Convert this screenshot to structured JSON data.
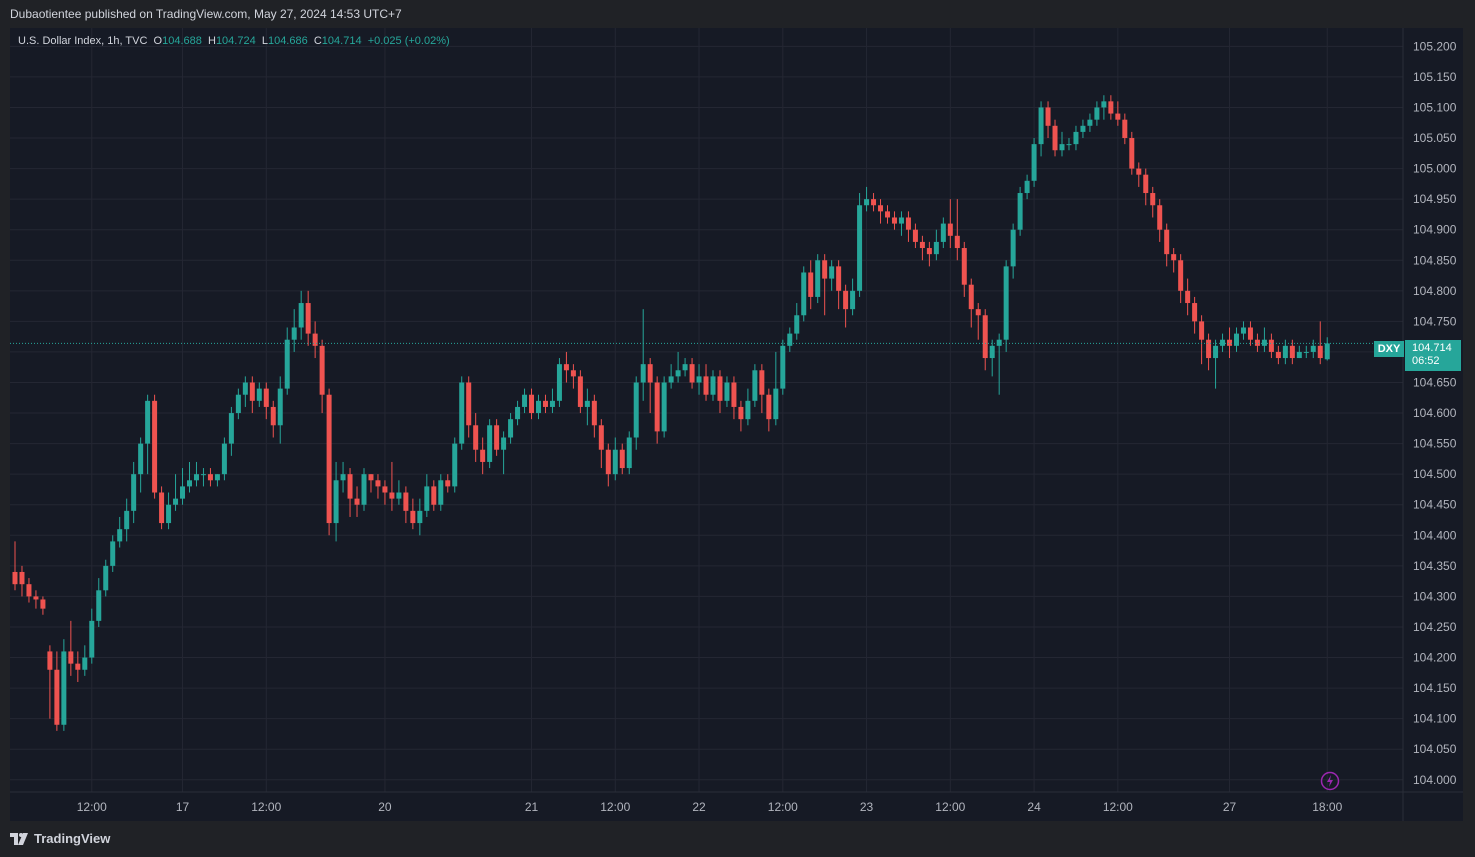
{
  "header": {
    "published_text": "Dubaotientee published on TradingView.com, May 27, 2024 14:53 UTC+7"
  },
  "legend": {
    "symbol": "U.S. Dollar Index, 1h, TVC",
    "o_label": "O",
    "o_value": "104.688",
    "h_label": "H",
    "h_value": "104.724",
    "l_label": "L",
    "l_value": "104.686",
    "c_label": "C",
    "c_value": "104.714",
    "change": "+0.025 (+0.02%)"
  },
  "price_tag": {
    "symbol": "DXY",
    "price": "104.714",
    "countdown": "06:52"
  },
  "footer": {
    "brand": "TradingView"
  },
  "colors": {
    "up": "#26a69a",
    "down": "#ef5350",
    "background": "#161a25",
    "grid": "#242733",
    "text": "#b2b5be"
  },
  "icons": {
    "flash": "lightning-icon",
    "logo": "tradingview-logo-icon"
  },
  "chart_data": {
    "type": "candlestick",
    "title": "U.S. Dollar Index, 1h, TVC",
    "ylim": [
      103.98,
      105.23
    ],
    "y_ticks": [
      "105.200",
      "105.150",
      "105.100",
      "105.050",
      "105.000",
      "104.950",
      "104.900",
      "104.850",
      "104.800",
      "104.750",
      "104.700",
      "104.650",
      "104.600",
      "104.550",
      "104.500",
      "104.450",
      "104.400",
      "104.350",
      "104.300",
      "104.250",
      "104.200",
      "104.150",
      "104.100",
      "104.050",
      "104.000"
    ],
    "x_ticks": [
      {
        "index": 11,
        "label": "12:00"
      },
      {
        "index": 24,
        "label": "17"
      },
      {
        "index": 36,
        "label": "12:00"
      },
      {
        "index": 53,
        "label": "20"
      },
      {
        "index": 74,
        "label": "21"
      },
      {
        "index": 86,
        "label": "12:00"
      },
      {
        "index": 98,
        "label": "22"
      },
      {
        "index": 110,
        "label": "12:00"
      },
      {
        "index": 122,
        "label": "23"
      },
      {
        "index": 134,
        "label": "12:00"
      },
      {
        "index": 146,
        "label": "24"
      },
      {
        "index": 158,
        "label": "12:00"
      },
      {
        "index": 174,
        "label": "27"
      },
      {
        "index": 188,
        "label": "18:00"
      }
    ],
    "last_price": 104.714,
    "candles": [
      [
        104.34,
        104.32,
        104.39,
        104.31
      ],
      [
        104.34,
        104.32,
        104.35,
        104.3
      ],
      [
        104.32,
        104.3,
        104.33,
        104.29
      ],
      [
        104.3,
        104.295,
        104.31,
        104.28
      ],
      [
        104.295,
        104.28,
        104.3,
        104.27
      ],
      [
        104.21,
        104.18,
        104.22,
        104.1
      ],
      [
        104.18,
        104.09,
        104.21,
        104.08
      ],
      [
        104.09,
        104.21,
        104.23,
        104.08
      ],
      [
        104.21,
        104.19,
        104.26,
        104.17
      ],
      [
        104.19,
        104.18,
        104.21,
        104.16
      ],
      [
        104.18,
        104.2,
        104.22,
        104.17
      ],
      [
        104.2,
        104.26,
        104.28,
        104.19
      ],
      [
        104.26,
        104.31,
        104.33,
        104.25
      ],
      [
        104.31,
        104.35,
        104.36,
        104.3
      ],
      [
        104.35,
        104.39,
        104.4,
        104.34
      ],
      [
        104.39,
        104.41,
        104.43,
        104.38
      ],
      [
        104.41,
        104.44,
        104.46,
        104.39
      ],
      [
        104.44,
        104.5,
        104.52,
        104.42
      ],
      [
        104.5,
        104.55,
        104.56,
        104.47
      ],
      [
        104.55,
        104.62,
        104.63,
        104.5
      ],
      [
        104.62,
        104.47,
        104.63,
        104.46
      ],
      [
        104.47,
        104.42,
        104.48,
        104.41
      ],
      [
        104.42,
        104.45,
        104.47,
        104.41
      ],
      [
        104.45,
        104.46,
        104.5,
        104.44
      ],
      [
        104.46,
        104.48,
        104.51,
        104.45
      ],
      [
        104.48,
        104.49,
        104.52,
        104.47
      ],
      [
        104.49,
        104.5,
        104.52,
        104.48
      ],
      [
        104.5,
        104.5,
        104.51,
        104.48
      ],
      [
        104.5,
        104.49,
        104.51,
        104.48
      ],
      [
        104.49,
        104.5,
        104.5,
        104.48
      ],
      [
        104.5,
        104.55,
        104.56,
        104.49
      ],
      [
        104.55,
        104.6,
        104.61,
        104.53
      ],
      [
        104.6,
        104.63,
        104.64,
        104.59
      ],
      [
        104.63,
        104.65,
        104.66,
        104.61
      ],
      [
        104.65,
        104.62,
        104.66,
        104.6
      ],
      [
        104.62,
        104.64,
        104.65,
        104.61
      ],
      [
        104.64,
        104.61,
        104.65,
        104.59
      ],
      [
        104.61,
        104.58,
        104.62,
        104.56
      ],
      [
        104.58,
        104.64,
        104.66,
        104.55
      ],
      [
        104.64,
        104.72,
        104.74,
        104.63
      ],
      [
        104.72,
        104.74,
        104.77,
        104.7
      ],
      [
        104.74,
        104.78,
        104.8,
        104.72
      ],
      [
        104.78,
        104.73,
        104.8,
        104.71
      ],
      [
        104.73,
        104.71,
        104.75,
        104.69
      ],
      [
        104.71,
        104.63,
        104.72,
        104.6
      ],
      [
        104.63,
        104.42,
        104.64,
        104.4
      ],
      [
        104.42,
        104.49,
        104.52,
        104.39
      ],
      [
        104.49,
        104.5,
        104.52,
        104.47
      ],
      [
        104.5,
        104.46,
        104.51,
        104.43
      ],
      [
        104.46,
        104.45,
        104.48,
        104.43
      ],
      [
        104.45,
        104.5,
        104.51,
        104.44
      ],
      [
        104.5,
        104.49,
        104.5,
        104.47
      ],
      [
        104.49,
        104.48,
        104.5,
        104.46
      ],
      [
        104.48,
        104.47,
        104.49,
        104.45
      ],
      [
        104.47,
        104.46,
        104.52,
        104.44
      ],
      [
        104.46,
        104.47,
        104.49,
        104.45
      ],
      [
        104.47,
        104.44,
        104.48,
        104.42
      ],
      [
        104.44,
        104.42,
        104.46,
        104.41
      ],
      [
        104.42,
        104.44,
        104.46,
        104.4
      ],
      [
        104.44,
        104.48,
        104.5,
        104.43
      ],
      [
        104.48,
        104.45,
        104.49,
        104.44
      ],
      [
        104.45,
        104.49,
        104.5,
        104.44
      ],
      [
        104.49,
        104.48,
        104.5,
        104.47
      ],
      [
        104.48,
        104.55,
        104.56,
        104.47
      ],
      [
        104.55,
        104.65,
        104.66,
        104.54
      ],
      [
        104.65,
        104.58,
        104.66,
        104.56
      ],
      [
        104.58,
        104.54,
        104.6,
        104.52
      ],
      [
        104.54,
        104.52,
        104.56,
        104.5
      ],
      [
        104.52,
        104.58,
        104.59,
        104.51
      ],
      [
        104.58,
        104.54,
        104.59,
        104.53
      ],
      [
        104.54,
        104.56,
        104.57,
        104.5
      ],
      [
        104.56,
        104.59,
        104.6,
        104.55
      ],
      [
        104.59,
        104.61,
        104.62,
        104.58
      ],
      [
        104.61,
        104.63,
        104.64,
        104.6
      ],
      [
        104.63,
        104.6,
        104.64,
        104.59
      ],
      [
        104.6,
        104.62,
        104.63,
        104.59
      ],
      [
        104.62,
        104.61,
        104.63,
        104.6
      ],
      [
        104.61,
        104.62,
        104.64,
        104.6
      ],
      [
        104.62,
        104.68,
        104.69,
        104.61
      ],
      [
        104.68,
        104.67,
        104.7,
        104.65
      ],
      [
        104.67,
        104.66,
        104.68,
        104.64
      ],
      [
        104.66,
        104.61,
        104.67,
        104.6
      ],
      [
        104.61,
        104.62,
        104.64,
        104.58
      ],
      [
        104.62,
        104.58,
        104.63,
        104.56
      ],
      [
        104.58,
        104.54,
        104.59,
        104.51
      ],
      [
        104.54,
        104.5,
        104.55,
        104.48
      ],
      [
        104.5,
        104.54,
        104.56,
        104.49
      ],
      [
        104.54,
        104.51,
        104.55,
        104.5
      ],
      [
        104.51,
        104.56,
        104.57,
        104.5
      ],
      [
        104.56,
        104.65,
        104.66,
        104.54
      ],
      [
        104.65,
        104.68,
        104.77,
        104.62
      ],
      [
        104.68,
        104.65,
        104.69,
        104.6
      ],
      [
        104.65,
        104.57,
        104.66,
        104.55
      ],
      [
        104.57,
        104.65,
        104.66,
        104.56
      ],
      [
        104.65,
        104.66,
        104.68,
        104.64
      ],
      [
        104.66,
        104.67,
        104.7,
        104.65
      ],
      [
        104.67,
        104.68,
        104.69,
        104.66
      ],
      [
        104.68,
        104.65,
        104.69,
        104.64
      ],
      [
        104.65,
        104.66,
        104.68,
        104.63
      ],
      [
        104.66,
        104.63,
        104.68,
        104.62
      ],
      [
        104.63,
        104.66,
        104.67,
        104.62
      ],
      [
        104.66,
        104.62,
        104.67,
        104.6
      ],
      [
        104.62,
        104.65,
        104.66,
        104.61
      ],
      [
        104.65,
        104.61,
        104.66,
        104.59
      ],
      [
        104.61,
        104.59,
        104.62,
        104.57
      ],
      [
        104.59,
        104.62,
        104.64,
        104.58
      ],
      [
        104.62,
        104.67,
        104.68,
        104.61
      ],
      [
        104.67,
        104.63,
        104.68,
        104.6
      ],
      [
        104.63,
        104.59,
        104.64,
        104.57
      ],
      [
        104.59,
        104.64,
        104.7,
        104.58
      ],
      [
        104.64,
        104.71,
        104.72,
        104.63
      ],
      [
        104.71,
        104.73,
        104.74,
        104.7
      ],
      [
        104.73,
        104.76,
        104.78,
        104.72
      ],
      [
        104.76,
        104.83,
        104.84,
        104.75
      ],
      [
        104.83,
        104.79,
        104.85,
        104.77
      ],
      [
        104.79,
        104.85,
        104.86,
        104.78
      ],
      [
        104.85,
        104.82,
        104.86,
        104.76
      ],
      [
        104.82,
        104.84,
        104.85,
        104.8
      ],
      [
        104.84,
        104.8,
        104.85,
        104.77
      ],
      [
        104.8,
        104.77,
        104.81,
        104.74
      ],
      [
        104.77,
        104.8,
        104.82,
        104.76
      ],
      [
        104.8,
        104.94,
        104.96,
        104.79
      ],
      [
        104.94,
        104.95,
        104.97,
        104.93
      ],
      [
        104.95,
        104.94,
        104.96,
        104.93
      ],
      [
        104.94,
        104.93,
        104.95,
        104.91
      ],
      [
        104.93,
        104.92,
        104.94,
        104.91
      ],
      [
        104.92,
        104.91,
        104.93,
        104.9
      ],
      [
        104.91,
        104.92,
        104.93,
        104.89
      ],
      [
        104.92,
        104.9,
        104.93,
        104.88
      ],
      [
        104.9,
        104.88,
        104.91,
        104.87
      ],
      [
        104.88,
        104.87,
        104.89,
        104.85
      ],
      [
        104.87,
        104.86,
        104.88,
        104.84
      ],
      [
        104.86,
        104.88,
        104.9,
        104.85
      ],
      [
        104.88,
        104.91,
        104.92,
        104.87
      ],
      [
        104.91,
        104.89,
        104.95,
        104.87
      ],
      [
        104.89,
        104.87,
        104.95,
        104.85
      ],
      [
        104.87,
        104.81,
        104.88,
        104.79
      ],
      [
        104.81,
        104.77,
        104.82,
        104.74
      ],
      [
        104.77,
        104.76,
        104.78,
        104.72
      ],
      [
        104.76,
        104.69,
        104.77,
        104.67
      ],
      [
        104.69,
        104.71,
        104.72,
        104.66
      ],
      [
        104.71,
        104.72,
        104.73,
        104.63
      ],
      [
        104.72,
        104.84,
        104.85,
        104.7
      ],
      [
        104.84,
        104.9,
        104.91,
        104.82
      ],
      [
        104.9,
        104.96,
        104.97,
        104.89
      ],
      [
        104.96,
        104.98,
        104.99,
        104.95
      ],
      [
        104.98,
        105.04,
        105.05,
        104.97
      ],
      [
        105.04,
        105.1,
        105.11,
        105.02
      ],
      [
        105.1,
        105.07,
        105.11,
        105.05
      ],
      [
        105.07,
        105.03,
        105.08,
        105.02
      ],
      [
        105.03,
        105.04,
        105.06,
        105.02
      ],
      [
        105.04,
        105.04,
        105.05,
        105.03
      ],
      [
        105.04,
        105.06,
        105.07,
        105.03
      ],
      [
        105.06,
        105.07,
        105.08,
        105.05
      ],
      [
        105.07,
        105.08,
        105.09,
        105.06
      ],
      [
        105.08,
        105.1,
        105.11,
        105.07
      ],
      [
        105.1,
        105.11,
        105.12,
        105.08
      ],
      [
        105.11,
        105.09,
        105.12,
        105.08
      ],
      [
        105.09,
        105.08,
        105.11,
        105.07
      ],
      [
        105.08,
        105.05,
        105.09,
        105.04
      ],
      [
        105.05,
        105.0,
        105.06,
        104.99
      ],
      [
        105.0,
        104.99,
        105.01,
        104.97
      ],
      [
        104.99,
        104.96,
        105.0,
        104.94
      ],
      [
        104.96,
        104.94,
        104.97,
        104.92
      ],
      [
        104.94,
        104.9,
        104.95,
        104.88
      ],
      [
        104.9,
        104.86,
        104.91,
        104.84
      ],
      [
        104.86,
        104.85,
        104.87,
        104.83
      ],
      [
        104.85,
        104.8,
        104.86,
        104.78
      ],
      [
        104.8,
        104.78,
        104.82,
        104.76
      ],
      [
        104.78,
        104.75,
        104.79,
        104.73
      ],
      [
        104.75,
        104.72,
        104.76,
        104.68
      ],
      [
        104.72,
        104.69,
        104.73,
        104.67
      ],
      [
        104.69,
        104.71,
        104.72,
        104.64
      ],
      [
        104.71,
        104.72,
        104.73,
        104.7
      ],
      [
        104.72,
        104.71,
        104.74,
        104.69
      ],
      [
        104.71,
        104.73,
        104.74,
        104.7
      ],
      [
        104.73,
        104.74,
        104.75,
        104.72
      ],
      [
        104.74,
        104.72,
        104.75,
        104.71
      ],
      [
        104.72,
        104.71,
        104.73,
        104.7
      ],
      [
        104.71,
        104.72,
        104.74,
        104.7
      ],
      [
        104.72,
        104.7,
        104.73,
        104.69
      ],
      [
        104.7,
        104.69,
        104.71,
        104.68
      ],
      [
        104.69,
        104.71,
        104.72,
        104.68
      ],
      [
        104.71,
        104.69,
        104.72,
        104.68
      ],
      [
        104.69,
        104.7,
        104.71,
        104.69
      ],
      [
        104.7,
        104.7,
        104.71,
        104.69
      ],
      [
        104.7,
        104.71,
        104.72,
        104.69
      ],
      [
        104.71,
        104.69,
        104.75,
        104.68
      ],
      [
        104.688,
        104.714,
        104.724,
        104.686
      ]
    ]
  }
}
